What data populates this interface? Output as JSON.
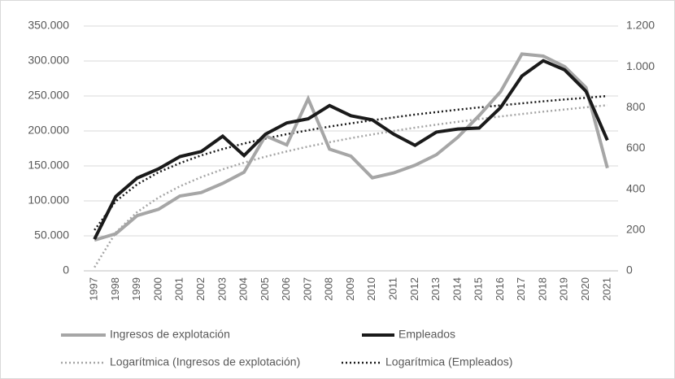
{
  "chart_data": {
    "type": "line",
    "categories": [
      "1997",
      "1998",
      "1999",
      "2000",
      "2001",
      "2002",
      "2003",
      "2004",
      "2005",
      "2006",
      "2007",
      "2008",
      "2009",
      "2010",
      "2011",
      "2012",
      "2013",
      "2014",
      "2015",
      "2016",
      "2017",
      "2018",
      "2019",
      "2020",
      "2021"
    ],
    "series": [
      {
        "name": "Ingresos de explotación",
        "color": "#a6a6a6",
        "axis": "y",
        "values": [
          44000,
          53000,
          79000,
          88000,
          107000,
          112000,
          125000,
          141000,
          193000,
          180000,
          246000,
          174000,
          164000,
          133000,
          140000,
          151000,
          166000,
          191000,
          222000,
          256000,
          310000,
          307000,
          292000,
          262000,
          147000
        ]
      },
      {
        "name": "Empleados",
        "color": "#1a1a1a",
        "axis": "y2",
        "values": [
          155,
          365,
          455,
          500,
          560,
          585,
          660,
          565,
          670,
          725,
          745,
          810,
          760,
          740,
          670,
          615,
          680,
          695,
          700,
          800,
          955,
          1030,
          985,
          880,
          640
        ]
      },
      {
        "name": "Logarítmica (Ingresos de explotación)",
        "color": "#a6a6a6",
        "axis": "y",
        "dotted": true,
        "values": [
          5000,
          54900,
          84100,
          104800,
          120900,
          134000,
          145100,
          154700,
          163200,
          170800,
          177700,
          183900,
          189700,
          195000,
          200000,
          204700,
          209000,
          213100,
          217000,
          220700,
          224200,
          227600,
          230700,
          233800,
          236800
        ]
      },
      {
        "name": "Logarítmica (Empleados)",
        "color": "#1a1a1a",
        "axis": "y2",
        "dotted": true,
        "values": [
          200,
          341,
          424,
          483,
          528,
          566,
          597,
          624,
          648,
          670,
          689,
          707,
          723,
          738,
          752,
          766,
          778,
          790,
          801,
          811,
          821,
          831,
          840,
          848,
          857
        ]
      }
    ],
    "ylim": [
      0,
      350000
    ],
    "yticks": [
      0,
      {
        "value": 50000,
        "label": "50.000"
      },
      {
        "value": 100000,
        "label": "100.000"
      },
      {
        "value": 150000,
        "label": "150.000"
      },
      {
        "value": 200000,
        "label": "200.000"
      },
      {
        "value": 250000,
        "label": "250.000"
      },
      {
        "value": 300000,
        "label": "300.000"
      },
      {
        "value": 350000,
        "label": "350.000"
      }
    ],
    "y2lim": [
      0,
      1200
    ],
    "y2ticks": [
      0,
      200,
      400,
      600,
      800,
      {
        "value": 1000,
        "label": "1.000"
      },
      {
        "value": 1200,
        "label": "1.200"
      }
    ],
    "grid": true,
    "legend": "bottom"
  }
}
